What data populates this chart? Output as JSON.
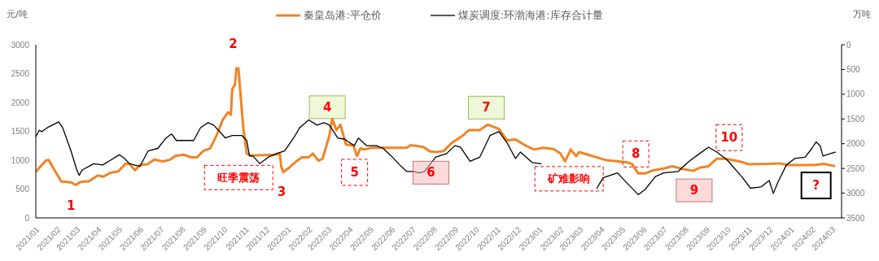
{
  "chart_data": {
    "type": "line",
    "ylabel": "元/吨",
    "y2label": "万吨",
    "legend": "top",
    "grid": false,
    "xlim": [
      "2021-01-01",
      "2024-03-15"
    ],
    "xticks": [
      {
        "value": "2021-01-01",
        "label": "2021/01"
      },
      {
        "value": "2021-02-01",
        "label": "2021/02"
      },
      {
        "value": "2021-03-01",
        "label": "2021/03"
      },
      {
        "value": "2021-04-01",
        "label": "2021/04"
      },
      {
        "value": "2021-05-01",
        "label": "2021/05"
      },
      {
        "value": "2021-06-01",
        "label": "2021/06"
      },
      {
        "value": "2021-07-01",
        "label": "2021/07"
      },
      {
        "value": "2021-08-01",
        "label": "2021/08"
      },
      {
        "value": "2021-09-01",
        "label": "2021/09"
      },
      {
        "value": "2021-10-01",
        "label": "2021/10"
      },
      {
        "value": "2021-11-01",
        "label": "2021/11"
      },
      {
        "value": "2021-12-01",
        "label": "2021/12"
      },
      {
        "value": "2022-01-01",
        "label": "2022/01"
      },
      {
        "value": "2022-02-01",
        "label": "2022/02"
      },
      {
        "value": "2022-03-01",
        "label": "2022/03"
      },
      {
        "value": "2022-04-01",
        "label": "2022/04"
      },
      {
        "value": "2022-05-01",
        "label": "2022/05"
      },
      {
        "value": "2022-06-01",
        "label": "2022/06"
      },
      {
        "value": "2022-07-01",
        "label": "2022/07"
      },
      {
        "value": "2022-08-01",
        "label": "2022/08"
      },
      {
        "value": "2022-09-01",
        "label": "2022/09"
      },
      {
        "value": "2022-10-01",
        "label": "2022/10"
      },
      {
        "value": "2022-11-01",
        "label": "2022/11"
      },
      {
        "value": "2022-12-01",
        "label": "2022/12"
      },
      {
        "value": "2023-01-01",
        "label": "2023/01"
      },
      {
        "value": "2023-02-01",
        "label": "2023/02"
      },
      {
        "value": "2023-03-01",
        "label": "2023/03"
      },
      {
        "value": "2023-04-01",
        "label": "2023/04"
      },
      {
        "value": "2023-05-01",
        "label": "2023/05"
      },
      {
        "value": "2023-06-01",
        "label": "2023/06"
      },
      {
        "value": "2023-07-01",
        "label": "2023/07"
      },
      {
        "value": "2023-08-01",
        "label": "2023/08"
      },
      {
        "value": "2023-09-01",
        "label": "2023/09"
      },
      {
        "value": "2023-10-01",
        "label": "2023/10"
      },
      {
        "value": "2023-11-01",
        "label": "2023/11"
      },
      {
        "value": "2023-12-01",
        "label": "2023/12"
      },
      {
        "value": "2024-01-01",
        "label": "2024/01"
      },
      {
        "value": "2024-02-01",
        "label": "2024/02"
      },
      {
        "value": "2024-03-01",
        "label": "2024/03"
      }
    ],
    "ylim": [
      0,
      3000
    ],
    "yticks": [
      0,
      500,
      1000,
      1500,
      2000,
      2500,
      3000
    ],
    "y2lim": [
      3500,
      0
    ],
    "y2ticks": [
      0,
      500,
      1000,
      1500,
      2000,
      2500,
      3000,
      3500
    ],
    "series": [
      {
        "name": "秦皇岛港:平仓价",
        "color": "#f08424",
        "x": [
          "2021-01-01",
          "2021-01-16",
          "2021-01-20",
          "2021-01-26",
          "2021-02-07",
          "2021-02-21",
          "2021-02-28",
          "2021-03-07",
          "2021-03-19",
          "2021-04-01",
          "2021-04-09",
          "2021-04-19",
          "2021-05-01",
          "2021-05-11",
          "2021-05-17",
          "2021-05-25",
          "2021-06-01",
          "2021-06-12",
          "2021-06-22",
          "2021-07-04",
          "2021-07-14",
          "2021-07-22",
          "2021-08-03",
          "2021-08-15",
          "2021-08-23",
          "2021-09-01",
          "2021-09-11",
          "2021-09-21",
          "2021-09-29",
          "2021-10-07",
          "2021-10-11",
          "2021-10-13",
          "2021-10-17",
          "2021-10-19",
          "2021-10-22",
          "2021-10-25",
          "2021-10-29",
          "2021-11-03",
          "2021-11-09",
          "2021-12-15",
          "2021-12-21",
          "2021-12-23",
          "2021-12-26",
          "2022-01-06",
          "2022-01-14",
          "2022-01-22",
          "2022-02-01",
          "2022-02-07",
          "2022-02-15",
          "2022-02-21",
          "2022-02-25",
          "2022-03-03",
          "2022-03-07",
          "2022-03-13",
          "2022-03-19",
          "2022-03-27",
          "2022-04-07",
          "2022-04-12",
          "2022-04-17",
          "2022-04-23",
          "2022-05-02",
          "2022-06-23",
          "2022-06-29",
          "2022-07-17",
          "2022-07-27",
          "2022-08-04",
          "2022-08-16",
          "2022-08-27",
          "2022-09-13",
          "2022-09-21",
          "2022-10-07",
          "2022-10-19",
          "2022-11-04",
          "2022-11-16",
          "2022-11-28",
          "2022-12-13",
          "2022-12-25",
          "2023-01-07",
          "2023-01-22",
          "2023-02-01",
          "2023-02-08",
          "2023-02-16",
          "2023-02-24",
          "2023-02-28",
          "2023-03-13",
          "2023-04-07",
          "2023-05-10",
          "2023-05-16",
          "2023-05-25",
          "2023-06-04",
          "2023-06-16",
          "2023-07-01",
          "2023-07-13",
          "2023-07-28",
          "2023-08-13",
          "2023-08-22",
          "2023-09-04",
          "2023-09-16",
          "2023-09-28",
          "2023-10-19",
          "2023-11-01",
          "2023-11-28",
          "2023-12-16",
          "2023-12-28",
          "2024-02-04",
          "2024-02-19",
          "2024-03-04"
        ],
        "values": [
          800,
          1000,
          1000,
          870,
          630,
          615,
          570,
          625,
          635,
          735,
          715,
          780,
          810,
          935,
          935,
          825,
          915,
          930,
          1010,
          980,
          1005,
          1070,
          1095,
          1050,
          1050,
          1160,
          1205,
          1450,
          1695,
          1830,
          1785,
          2230,
          2310,
          2590,
          2590,
          2140,
          1560,
          1115,
          1080,
          1095,
          1115,
          895,
          790,
          895,
          980,
          1050,
          1050,
          1115,
          990,
          1025,
          1185,
          1430,
          1720,
          1520,
          1615,
          1270,
          1250,
          1070,
          1205,
          1185,
          1215,
          1215,
          1260,
          1230,
          1150,
          1140,
          1160,
          1295,
          1430,
          1520,
          1520,
          1615,
          1540,
          1340,
          1360,
          1250,
          1185,
          1215,
          1195,
          1115,
          980,
          1185,
          1070,
          1140,
          1095,
          1005,
          960,
          935,
          770,
          770,
          825,
          855,
          895,
          850,
          815,
          870,
          895,
          1025,
          1025,
          980,
          930,
          935,
          945,
          915,
          915,
          935,
          900
        ]
      },
      {
        "name": "煤炭调度:环渤海港:库存合计量",
        "color": "#000000",
        "axis": "y2",
        "x": [
          "2021-01-01",
          "2021-01-06",
          "2021-01-10",
          "2021-01-19",
          "2021-02-01",
          "2021-02-03",
          "2021-02-09",
          "2021-02-21",
          "2021-03-01",
          "2021-03-05",
          "2021-03-09",
          "2021-03-26",
          "2021-04-08",
          "2021-04-20",
          "2021-05-02",
          "2021-05-08",
          "2021-05-17",
          "2021-06-01",
          "2021-06-13",
          "2021-06-27",
          "2021-07-09",
          "2021-07-17",
          "2021-07-24",
          "2021-08-06",
          "2021-08-18",
          "2021-08-28",
          "2021-09-08",
          "2021-09-16",
          "2021-09-23",
          "2021-10-03",
          "2021-10-13",
          "2021-10-27",
          "2021-11-03",
          "2021-11-07",
          "2021-11-12",
          "2021-11-22",
          "2021-12-04",
          "2021-12-16",
          "2021-12-28",
          "2022-01-10",
          "2022-01-19",
          "2022-02-01",
          "2022-02-13",
          "2022-02-23",
          "2022-03-03",
          "2022-03-15",
          "2022-03-25",
          "2022-04-08",
          "2022-04-14",
          "2022-04-26",
          "2022-05-10",
          "2022-05-20",
          "2022-06-01",
          "2022-06-13",
          "2022-06-23",
          "2022-07-03",
          "2022-07-11",
          "2022-07-19",
          "2022-08-04",
          "2022-08-20",
          "2022-09-01",
          "2022-09-09",
          "2022-09-23",
          "2022-10-07",
          "2022-10-22",
          "2022-11-04",
          "2022-11-16",
          "2022-11-28",
          "2022-12-05",
          "2022-12-22",
          "2023-01-04",
          "2023-02-15",
          "2023-03-26",
          "2023-04-04",
          "2023-04-25",
          "2023-05-07",
          "2023-05-25",
          "2023-06-04",
          "2023-06-19",
          "2023-07-01",
          "2023-07-22",
          "2023-08-07",
          "2023-08-22",
          "2023-09-04",
          "2023-09-16",
          "2023-10-01",
          "2023-10-22",
          "2023-11-04",
          "2023-11-19",
          "2023-12-01",
          "2023-12-07",
          "2023-12-14",
          "2023-12-26",
          "2024-01-07",
          "2024-01-22",
          "2024-02-01",
          "2024-02-07",
          "2024-02-13",
          "2024-02-17",
          "2024-02-28",
          "2024-03-06"
        ],
        "values": [
          1860,
          1730,
          1755,
          1665,
          1575,
          1560,
          1675,
          2145,
          2510,
          2640,
          2535,
          2405,
          2430,
          2330,
          2225,
          2275,
          2405,
          2460,
          2145,
          2095,
          1885,
          1805,
          1935,
          1935,
          1935,
          1675,
          1575,
          1625,
          1730,
          1885,
          1835,
          1835,
          1935,
          2250,
          2250,
          2405,
          2275,
          2200,
          2145,
          1885,
          1675,
          1520,
          1625,
          1575,
          1625,
          1885,
          1910,
          2040,
          1885,
          2040,
          2040,
          2095,
          2250,
          2430,
          2560,
          2560,
          2590,
          2560,
          2275,
          2200,
          2040,
          2070,
          2355,
          2275,
          1835,
          1755,
          1990,
          2300,
          2170,
          2380,
          2405,
          null,
          2900,
          2690,
          2590,
          2770,
          3030,
          2925,
          2665,
          2590,
          2560,
          2355,
          2200,
          2070,
          2170,
          2330,
          2665,
          2900,
          2875,
          2745,
          3005,
          2770,
          2430,
          2300,
          2275,
          2095,
          1965,
          2040,
          2250,
          2200,
          2170
        ]
      }
    ],
    "annotations": [
      {
        "text": "1",
        "x": "2021-02-28",
        "y": 570
      },
      {
        "text": "2",
        "x": "2021-10-19",
        "y": 2590
      },
      {
        "text": "3",
        "x": "2021-12-26",
        "y": 790
      },
      {
        "text": "4",
        "x": "2022-03-07",
        "y": 1720
      },
      {
        "text": "5",
        "x": "2022-04-12",
        "y": 1070
      },
      {
        "text": "6",
        "x": "2022-07-27",
        "y": 1150
      },
      {
        "text": "7",
        "x": "2022-10-19",
        "y": 1615
      },
      {
        "text": "8",
        "x": "2023-05-25",
        "y": 770
      },
      {
        "text": "9",
        "x": "2023-08-13",
        "y": 815
      },
      {
        "text": "10",
        "x": "2023-09-28",
        "y": 1025
      },
      {
        "text": "?",
        "x": "2024-03-04",
        "y": 900
      },
      {
        "text": "旺季震荡",
        "x": "2021-11-09",
        "y": 1080
      },
      {
        "text": "矿难影响",
        "x": "2023-02-16",
        "y": 1185
      }
    ]
  }
}
